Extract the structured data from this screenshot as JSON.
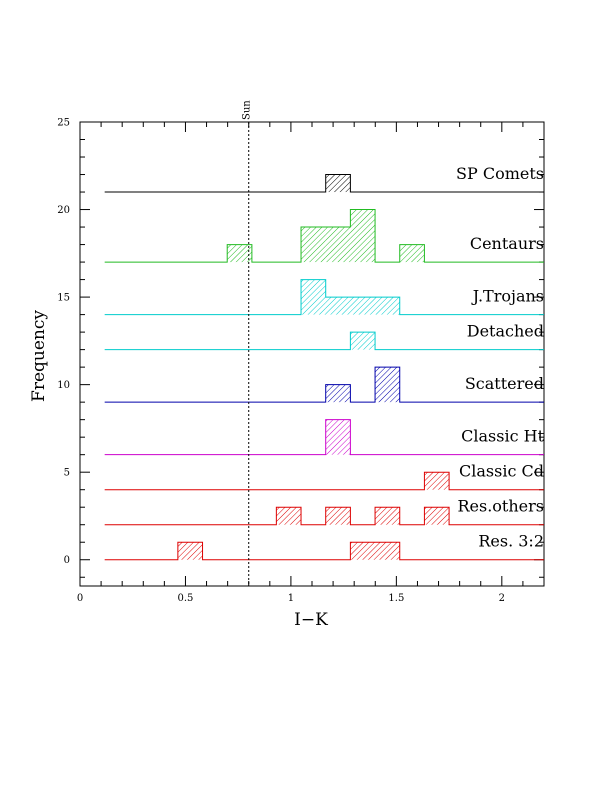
{
  "chart_data": {
    "type": "bar",
    "subtype": "stacked-offset-histogram",
    "xlabel": "I−K",
    "ylabel": "Frequency",
    "xlim": [
      0,
      2.2
    ],
    "ylim": [
      -1.5,
      25
    ],
    "x_ticks": [
      "0",
      "0.5",
      "1",
      "1.5",
      "2"
    ],
    "y_ticks": [
      "0",
      "5",
      "10",
      "15",
      "20",
      "25"
    ],
    "bin_width": 0.117,
    "reference_line": {
      "label": "Sun",
      "x": 0.8
    },
    "series": [
      {
        "name": "SP Comets",
        "color": "#000000",
        "offset": 21,
        "bins": [
          {
            "x0": 1.165,
            "x1": 1.282,
            "count": 1
          }
        ]
      },
      {
        "name": "Centaurs",
        "color": "#22bb22",
        "offset": 17,
        "bins": [
          {
            "x0": 0.698,
            "x1": 0.815,
            "count": 1
          },
          {
            "x0": 1.048,
            "x1": 1.165,
            "count": 2
          },
          {
            "x0": 1.165,
            "x1": 1.282,
            "count": 2
          },
          {
            "x0": 1.282,
            "x1": 1.399,
            "count": 3
          },
          {
            "x0": 1.516,
            "x1": 1.633,
            "count": 1
          }
        ]
      },
      {
        "name": "J.Trojans",
        "color": "#00cccc",
        "offset": 14,
        "bins": [
          {
            "x0": 1.048,
            "x1": 1.165,
            "count": 2
          },
          {
            "x0": 1.165,
            "x1": 1.282,
            "count": 1
          },
          {
            "x0": 1.282,
            "x1": 1.399,
            "count": 1
          },
          {
            "x0": 1.399,
            "x1": 1.516,
            "count": 1
          }
        ]
      },
      {
        "name": "Detached",
        "color": "#00cccc",
        "offset": 12,
        "bins": [
          {
            "x0": 1.282,
            "x1": 1.399,
            "count": 1
          }
        ]
      },
      {
        "name": "Scattered",
        "color": "#0000aa",
        "offset": 9,
        "bins": [
          {
            "x0": 1.165,
            "x1": 1.282,
            "count": 1
          },
          {
            "x0": 1.399,
            "x1": 1.516,
            "count": 2
          }
        ]
      },
      {
        "name": "Classic Ht",
        "color": "#cc00cc",
        "offset": 6,
        "bins": [
          {
            "x0": 1.165,
            "x1": 1.282,
            "count": 2
          }
        ]
      },
      {
        "name": "Classic Cd",
        "color": "#dd0000",
        "offset": 4,
        "bins": [
          {
            "x0": 1.633,
            "x1": 1.75,
            "count": 1
          }
        ]
      },
      {
        "name": "Res.others",
        "color": "#dd0000",
        "offset": 2,
        "bins": [
          {
            "x0": 0.931,
            "x1": 1.048,
            "count": 1
          },
          {
            "x0": 1.165,
            "x1": 1.282,
            "count": 1
          },
          {
            "x0": 1.399,
            "x1": 1.516,
            "count": 1
          },
          {
            "x0": 1.633,
            "x1": 1.75,
            "count": 1
          }
        ]
      },
      {
        "name": "Res. 3:2",
        "color": "#dd0000",
        "offset": 0,
        "bins": [
          {
            "x0": 0.464,
            "x1": 0.581,
            "count": 1
          },
          {
            "x0": 1.282,
            "x1": 1.399,
            "count": 1
          },
          {
            "x0": 1.399,
            "x1": 1.516,
            "count": 1
          }
        ]
      }
    ]
  }
}
